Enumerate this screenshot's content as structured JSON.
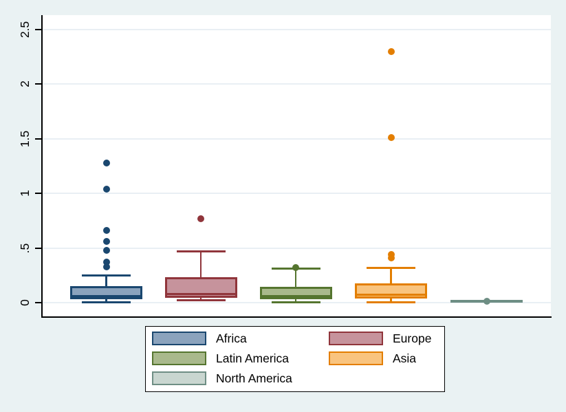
{
  "chart_data": {
    "type": "box",
    "title": "",
    "xlabel": "",
    "ylabel": "",
    "grid": true,
    "legend_position": "bottom",
    "legend_columns": 2,
    "y_axis": {
      "ticks": [
        0,
        0.5,
        1,
        1.5,
        2,
        2.5
      ],
      "labels": [
        "0",
        ".5",
        "1",
        "1.5",
        "2",
        "2.5"
      ],
      "range_shown": [
        -0.13,
        2.63
      ]
    },
    "colors": {
      "background": "#eaf2f3",
      "plot_background": "#ffffff",
      "gridline": "#e9eff4",
      "axis": "#000000"
    },
    "series": [
      {
        "name": "Africa",
        "color": "#1a476f",
        "fill": "#8ba3bd",
        "whisker_low": 0.005,
        "q1": 0.03,
        "median": 0.06,
        "q3": 0.15,
        "whisker_high": 0.25,
        "outliers": [
          0.33,
          0.37,
          0.48,
          0.56,
          0.66,
          1.04,
          1.28
        ]
      },
      {
        "name": "Europe",
        "color": "#90353b",
        "fill": "#c6939c",
        "whisker_low": 0.02,
        "q1": 0.046,
        "median": 0.08,
        "q3": 0.235,
        "whisker_high": 0.47,
        "outliers": [
          0.77
        ]
      },
      {
        "name": "Latin America",
        "color": "#55752f",
        "fill": "#a9b98c",
        "whisker_low": 0.003,
        "q1": 0.03,
        "median": 0.06,
        "q3": 0.145,
        "whisker_high": 0.31,
        "outliers": [
          0.32
        ]
      },
      {
        "name": "Asia",
        "color": "#e37e00",
        "fill": "#f9c47f",
        "whisker_low": 0.004,
        "q1": 0.035,
        "median": 0.07,
        "q3": 0.175,
        "whisker_high": 0.315,
        "outliers": [
          0.41,
          0.44,
          1.51,
          2.3
        ]
      },
      {
        "name": "North America",
        "color": "#6e8e84",
        "fill": "#c9d6d0",
        "whisker_low": 0.012,
        "q1": 0.012,
        "median": 0.012,
        "q3": 0.012,
        "whisker_high": 0.012,
        "outliers": [
          0.012
        ]
      }
    ]
  }
}
